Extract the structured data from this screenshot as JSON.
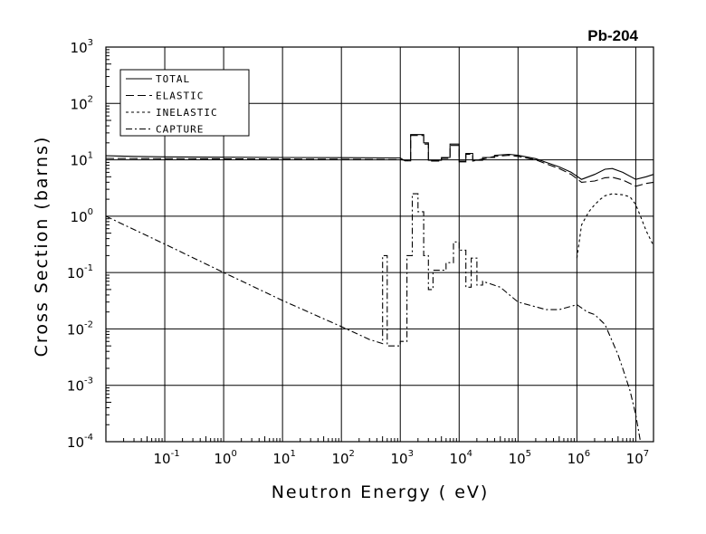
{
  "chart_data": {
    "type": "line",
    "title": "Pb-204",
    "xlabel": "Neutron Energy ( eV)",
    "ylabel": "Cross Section (barns)",
    "x_scale": "log",
    "y_scale": "log",
    "xlim": [
      0.01,
      20000000
    ],
    "ylim": [
      0.0001,
      1000
    ],
    "grid": true,
    "legend_position": "top-left",
    "x_ticks": [
      {
        "base": "10",
        "exp": "-1",
        "value": 0.1
      },
      {
        "base": "10",
        "exp": "0",
        "value": 1
      },
      {
        "base": "10",
        "exp": "1",
        "value": 10
      },
      {
        "base": "10",
        "exp": "2",
        "value": 100
      },
      {
        "base": "10",
        "exp": "3",
        "value": 1000
      },
      {
        "base": "10",
        "exp": "4",
        "value": 10000
      },
      {
        "base": "10",
        "exp": "5",
        "value": 100000
      },
      {
        "base": "10",
        "exp": "6",
        "value": 1000000
      },
      {
        "base": "10",
        "exp": "7",
        "value": 10000000
      }
    ],
    "y_ticks": [
      {
        "base": "10",
        "exp": "-4",
        "value": 0.0001
      },
      {
        "base": "10",
        "exp": "-3",
        "value": 0.001
      },
      {
        "base": "10",
        "exp": "-2",
        "value": 0.01
      },
      {
        "base": "10",
        "exp": "-1",
        "value": 0.1
      },
      {
        "base": "10",
        "exp": "0",
        "value": 1
      },
      {
        "base": "10",
        "exp": "1",
        "value": 10
      },
      {
        "base": "10",
        "exp": "2",
        "value": 100
      },
      {
        "base": "10",
        "exp": "3",
        "value": 1000
      }
    ],
    "series": [
      {
        "name": "TOTAL",
        "dash": "solid",
        "points": [
          [
            0.01,
            11.8
          ],
          [
            0.03,
            11.5
          ],
          [
            0.1,
            11.3
          ],
          [
            1,
            11.1
          ],
          [
            10,
            11
          ],
          [
            100,
            10.9
          ],
          [
            1000,
            10.8
          ],
          [
            1200,
            9.6
          ],
          [
            1500,
            9.6
          ],
          [
            1500,
            28
          ],
          [
            2500,
            28
          ],
          [
            2500,
            20
          ],
          [
            3000,
            20
          ],
          [
            3000,
            9.8
          ],
          [
            5000,
            9.8
          ],
          [
            5000,
            11
          ],
          [
            7000,
            11
          ],
          [
            7000,
            19
          ],
          [
            10000,
            19
          ],
          [
            10000,
            9.5
          ],
          [
            13000,
            9.5
          ],
          [
            13000,
            13
          ],
          [
            17000,
            13
          ],
          [
            17000,
            9.8
          ],
          [
            25000,
            9.8
          ],
          [
            25000,
            11
          ],
          [
            40000,
            11
          ],
          [
            40000,
            12
          ],
          [
            70000,
            12.5
          ],
          [
            100000,
            12
          ],
          [
            200000,
            10.5
          ],
          [
            300000,
            9
          ],
          [
            500000,
            7.5
          ],
          [
            800000,
            6
          ],
          [
            1200000,
            4.5
          ],
          [
            2000000,
            5.5
          ],
          [
            3000000,
            6.8
          ],
          [
            4000000,
            7
          ],
          [
            6000000,
            6
          ],
          [
            10000000,
            4.5
          ],
          [
            15000000,
            5
          ],
          [
            20000000,
            5.5
          ]
        ]
      },
      {
        "name": "ELASTIC",
        "dash": "long-dash",
        "points": [
          [
            0.01,
            10.6
          ],
          [
            0.1,
            10.5
          ],
          [
            1,
            10.4
          ],
          [
            10,
            10.3
          ],
          [
            100,
            10.2
          ],
          [
            1000,
            10.1
          ],
          [
            1500,
            9.5
          ],
          [
            1500,
            27
          ],
          [
            2500,
            27
          ],
          [
            2500,
            19
          ],
          [
            3000,
            19
          ],
          [
            3000,
            9.5
          ],
          [
            5000,
            9.5
          ],
          [
            5000,
            10.6
          ],
          [
            7000,
            10.6
          ],
          [
            7000,
            18
          ],
          [
            10000,
            18
          ],
          [
            10000,
            9.2
          ],
          [
            13000,
            9.2
          ],
          [
            13000,
            12.5
          ],
          [
            17000,
            12.5
          ],
          [
            17000,
            9.5
          ],
          [
            40000,
            11.5
          ],
          [
            70000,
            12
          ],
          [
            100000,
            11.5
          ],
          [
            200000,
            10
          ],
          [
            300000,
            8.5
          ],
          [
            500000,
            7
          ],
          [
            800000,
            5.5
          ],
          [
            1200000,
            4
          ],
          [
            2000000,
            4.2
          ],
          [
            3000000,
            4.8
          ],
          [
            4000000,
            4.9
          ],
          [
            6000000,
            4.4
          ],
          [
            10000000,
            3.4
          ],
          [
            15000000,
            3.8
          ],
          [
            20000000,
            4
          ]
        ]
      },
      {
        "name": "INELASTIC",
        "dash": "short-dash",
        "points": [
          [
            1000000,
            0.18
          ],
          [
            1200000,
            0.7
          ],
          [
            1600000,
            1.2
          ],
          [
            2000000,
            1.6
          ],
          [
            2500000,
            2
          ],
          [
            3000000,
            2.3
          ],
          [
            4000000,
            2.5
          ],
          [
            6000000,
            2.4
          ],
          [
            8000000,
            2.2
          ],
          [
            10000000,
            1.6
          ],
          [
            12000000,
            1
          ],
          [
            15000000,
            0.55
          ],
          [
            20000000,
            0.3
          ]
        ]
      },
      {
        "name": "CAPTURE",
        "dash": "dash-dot",
        "points": [
          [
            0.01,
            1
          ],
          [
            0.1,
            0.32
          ],
          [
            1,
            0.1
          ],
          [
            10,
            0.032
          ],
          [
            100,
            0.011
          ],
          [
            300,
            0.0065
          ],
          [
            500,
            0.0055
          ],
          [
            500,
            0.2
          ],
          [
            600,
            0.2
          ],
          [
            600,
            0.005
          ],
          [
            1000,
            0.005
          ],
          [
            1000,
            0.006
          ],
          [
            1300,
            0.006
          ],
          [
            1300,
            0.2
          ],
          [
            1600,
            0.2
          ],
          [
            1600,
            2.5
          ],
          [
            2000,
            2.5
          ],
          [
            2000,
            1.2
          ],
          [
            2500,
            1.2
          ],
          [
            2500,
            0.2
          ],
          [
            3000,
            0.2
          ],
          [
            3000,
            0.05
          ],
          [
            3600,
            0.05
          ],
          [
            3600,
            0.11
          ],
          [
            6000,
            0.11
          ],
          [
            6000,
            0.15
          ],
          [
            8000,
            0.15
          ],
          [
            8000,
            0.35
          ],
          [
            10000,
            0.35
          ],
          [
            10000,
            0.25
          ],
          [
            13000,
            0.25
          ],
          [
            13000,
            0.055
          ],
          [
            16000,
            0.055
          ],
          [
            16000,
            0.18
          ],
          [
            20000,
            0.18
          ],
          [
            20000,
            0.06
          ],
          [
            25000,
            0.06
          ],
          [
            25000,
            0.07
          ],
          [
            50000,
            0.055
          ],
          [
            100000,
            0.03
          ],
          [
            300000,
            0.022
          ],
          [
            500000,
            0.022
          ],
          [
            1000000,
            0.027
          ],
          [
            1500000,
            0.02
          ],
          [
            2000000,
            0.018
          ],
          [
            3000000,
            0.012
          ],
          [
            4000000,
            0.006
          ],
          [
            5000000,
            0.0035
          ],
          [
            6000000,
            0.002
          ],
          [
            8000000,
            0.0008
          ],
          [
            10000000,
            0.0003
          ],
          [
            12000000,
            0.0001
          ]
        ]
      }
    ]
  }
}
